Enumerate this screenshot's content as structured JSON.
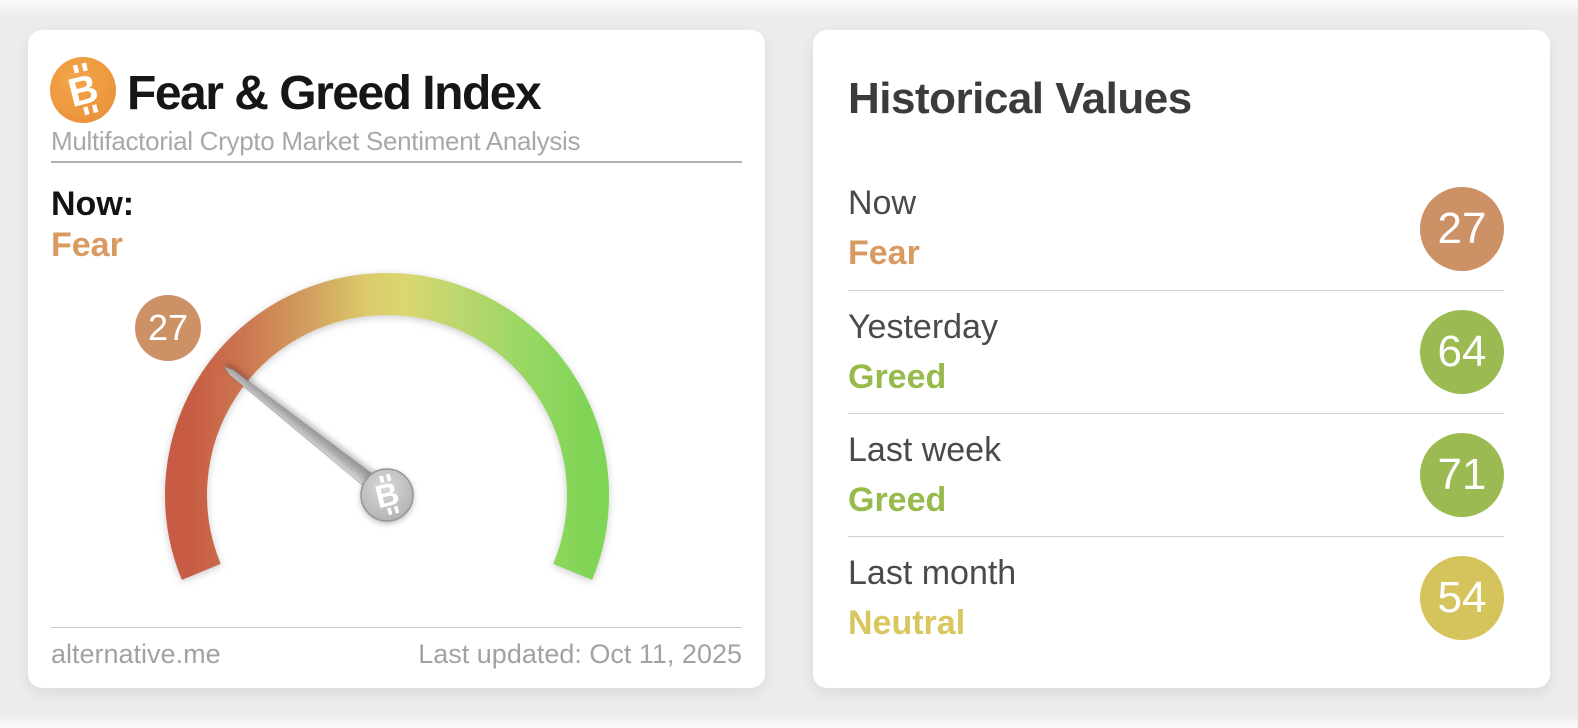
{
  "fear_greed_card": {
    "title": "Fear & Greed Index",
    "subtitle": "Multifactorial Crypto Market Sentiment Analysis",
    "now_label": "Now:",
    "now_classification": "Fear",
    "now_classification_color": "#d99a61",
    "gauge": {
      "value": 27,
      "min": 0,
      "max": 100,
      "badge_color": "#cd9166",
      "arc_colors": [
        "#c75b43",
        "#cc7550",
        "#d29d5e",
        "#dcca6c",
        "#d9d76f",
        "#bcd66e",
        "#97d862",
        "#80d456"
      ],
      "needle_color": "#a9a9a9"
    },
    "footer": {
      "source": "alternative.me",
      "last_updated": "Last updated: Oct 11, 2025"
    }
  },
  "historical_card": {
    "title": "Historical Values",
    "rows": [
      {
        "period": "Now",
        "classification": "Fear",
        "value": 27,
        "classification_color": "#d99a61",
        "badge_color": "#cd9166"
      },
      {
        "period": "Yesterday",
        "classification": "Greed",
        "value": 64,
        "classification_color": "#96ba4b",
        "badge_color": "#9cba52"
      },
      {
        "period": "Last week",
        "classification": "Greed",
        "value": 71,
        "classification_color": "#96ba4b",
        "badge_color": "#9cba52"
      },
      {
        "period": "Last month",
        "classification": "Neutral",
        "value": 54,
        "classification_color": "#d8c75e",
        "badge_color": "#d5c45c"
      }
    ]
  },
  "icons": {
    "bitcoin_glyph": "B"
  },
  "chart_data": {
    "type": "gauge",
    "title": "Fear & Greed Index",
    "value": 27,
    "range": [
      0,
      100
    ],
    "classification": "Fear",
    "historical": [
      {
        "period": "Now",
        "value": 27,
        "classification": "Fear"
      },
      {
        "period": "Yesterday",
        "value": 64,
        "classification": "Greed"
      },
      {
        "period": "Last week",
        "value": 71,
        "classification": "Greed"
      },
      {
        "period": "Last month",
        "value": 54,
        "classification": "Neutral"
      }
    ]
  }
}
